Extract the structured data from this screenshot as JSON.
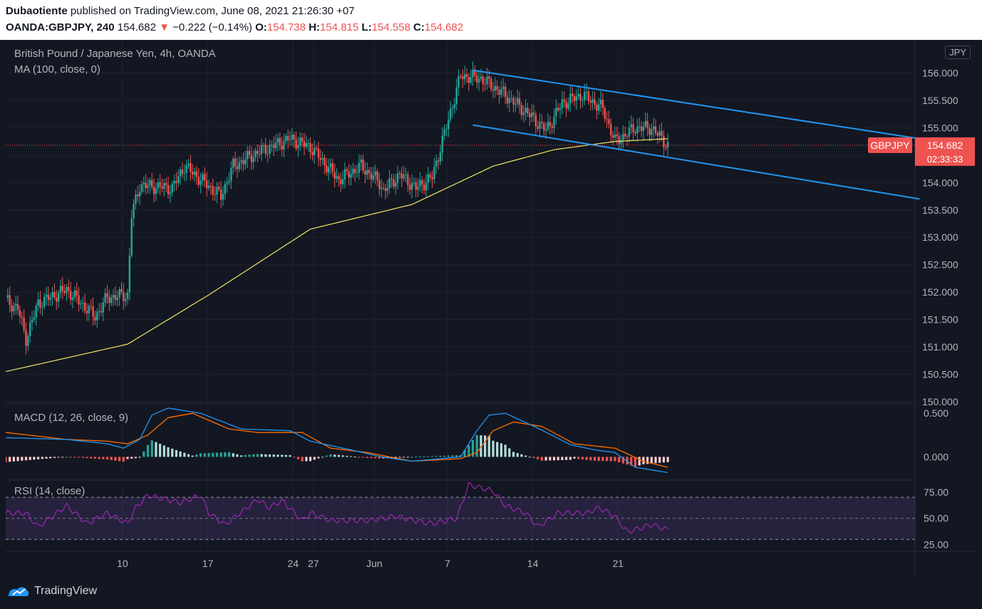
{
  "header": {
    "author": "Dubaotiente",
    "published_text": "published on TradingView.com, June 08, 2021 21:26:30 +07",
    "symbol": "OANDA:GBPJPY, 240",
    "last": "154.682",
    "arrow": "▼",
    "change": "−0.222 (−0.14%)",
    "o_label": "O:",
    "o_value": "154.738",
    "h_label": "H:",
    "h_value": "154.815",
    "l_label": "L:",
    "l_value": "154.558",
    "c_label": "C:",
    "c_value": "154.682"
  },
  "legends": {
    "main_title": "British Pound / Japanese Yen, 4h, OANDA",
    "ma": "MA (100, close, 0)",
    "macd": "MACD (12, 26, close, 9)",
    "rsi": "RSI (14, close)"
  },
  "price_badge": {
    "symbol_label": "GBPJPY",
    "price": "154.682",
    "countdown": "02:33:33",
    "currency": "JPY"
  },
  "brand": {
    "name": "TradingView"
  },
  "colors": {
    "up": "#26a69a",
    "down": "#ef5350",
    "ma": "#f5e663",
    "channel": "#2196f3",
    "macd_line": "#2196f3",
    "signal_line": "#ff6d00",
    "rsi_line": "#9c27b0",
    "rsi_band": "#7e57c2"
  },
  "chart_data": [
    {
      "type": "candlestick",
      "title": "British Pound / Japanese Yen, 4h, OANDA",
      "ylim": [
        150.0,
        156.5
      ],
      "y_ticks": [
        "156.000",
        "155.500",
        "155.000",
        "154.500",
        "154.000",
        "153.500",
        "153.000",
        "152.500",
        "152.000",
        "151.500",
        "151.000",
        "150.500",
        "150.000"
      ],
      "x_ticks": [
        "10",
        "17",
        "24",
        "27",
        "Jun",
        "7",
        "14",
        "21"
      ],
      "waypoints_time": [
        0,
        6,
        10,
        16,
        30,
        40,
        44,
        50,
        60,
        62,
        66,
        82,
        88,
        106,
        112,
        124,
        140,
        150,
        164,
        175,
        184,
        186,
        194,
        202,
        210,
        224,
        234,
        244,
        256,
        266,
        274,
        284,
        294,
        300,
        310,
        318,
        326
      ],
      "waypoints_close": [
        151.85,
        151.7,
        151.15,
        151.8,
        152.05,
        151.7,
        151.55,
        151.9,
        151.95,
        153.4,
        153.95,
        153.9,
        154.3,
        153.75,
        154.3,
        154.55,
        154.8,
        154.65,
        154.05,
        154.3,
        154.0,
        153.85,
        154.15,
        153.9,
        154.1,
        155.95,
        155.9,
        155.65,
        155.3,
        154.95,
        155.45,
        155.6,
        155.35,
        154.75,
        155.0,
        155.0,
        154.68
      ],
      "ma": {
        "name": "MA (100, close, 0)",
        "period": 100,
        "waypoints_time": [
          0,
          60,
          100,
          150,
          200,
          240,
          270,
          300,
          326
        ],
        "waypoints_value": [
          150.55,
          151.05,
          151.95,
          153.15,
          153.6,
          154.3,
          154.6,
          154.75,
          154.8
        ]
      },
      "channel": {
        "upper": {
          "t1": 230,
          "p1": 156.05,
          "t2": 450,
          "p2": 154.8
        },
        "lower": {
          "t1": 230,
          "p1": 155.05,
          "t2": 450,
          "p2": 153.7
        }
      },
      "last_price": 154.682
    },
    {
      "type": "bar",
      "title": "MACD (12, 26, close, 9)",
      "ylim": [
        -0.25,
        0.6
      ],
      "y_ticks": [
        "0.500",
        "0.000"
      ],
      "macd_waypoints_time": [
        0,
        30,
        50,
        58,
        66,
        72,
        80,
        96,
        116,
        140,
        150,
        170,
        185,
        200,
        224,
        232,
        238,
        246,
        262,
        278,
        290,
        300,
        310,
        326
      ],
      "macd_waypoints_value": [
        0.22,
        0.2,
        0.15,
        0.1,
        0.2,
        0.48,
        0.56,
        0.5,
        0.32,
        0.3,
        0.18,
        0.08,
        0.0,
        -0.05,
        0.0,
        0.3,
        0.48,
        0.5,
        0.33,
        0.14,
        0.08,
        0.05,
        -0.12,
        -0.18
      ],
      "signal_waypoints_time": [
        0,
        30,
        50,
        60,
        70,
        80,
        92,
        110,
        124,
        146,
        160,
        178,
        200,
        224,
        232,
        240,
        250,
        264,
        280,
        300,
        314,
        326
      ],
      "signal_waypoints_value": [
        0.28,
        0.2,
        0.18,
        0.15,
        0.25,
        0.45,
        0.5,
        0.32,
        0.28,
        0.28,
        0.1,
        0.05,
        -0.05,
        -0.02,
        0.05,
        0.3,
        0.4,
        0.35,
        0.15,
        0.1,
        -0.05,
        -0.12
      ]
    },
    {
      "type": "line",
      "title": "RSI (14, close)",
      "ylim": [
        20,
        85
      ],
      "y_ticks": [
        "75.00",
        "50.00",
        "25.00"
      ],
      "band": [
        30,
        70
      ],
      "midline": 50,
      "waypoints_time": [
        0,
        10,
        16,
        30,
        40,
        50,
        60,
        64,
        70,
        86,
        96,
        100,
        108,
        124,
        130,
        136,
        146,
        150,
        160,
        180,
        192,
        204,
        210,
        222,
        228,
        240,
        246,
        256,
        262,
        272,
        286,
        292,
        300,
        306,
        318,
        326
      ],
      "waypoints_value": [
        55,
        55,
        42,
        62,
        45,
        55,
        45,
        60,
        72,
        65,
        72,
        55,
        44,
        68,
        60,
        67,
        48,
        55,
        48,
        48,
        52,
        47,
        45,
        50,
        82,
        76,
        62,
        55,
        42,
        55,
        55,
        60,
        52,
        37,
        44,
        39
      ]
    }
  ]
}
